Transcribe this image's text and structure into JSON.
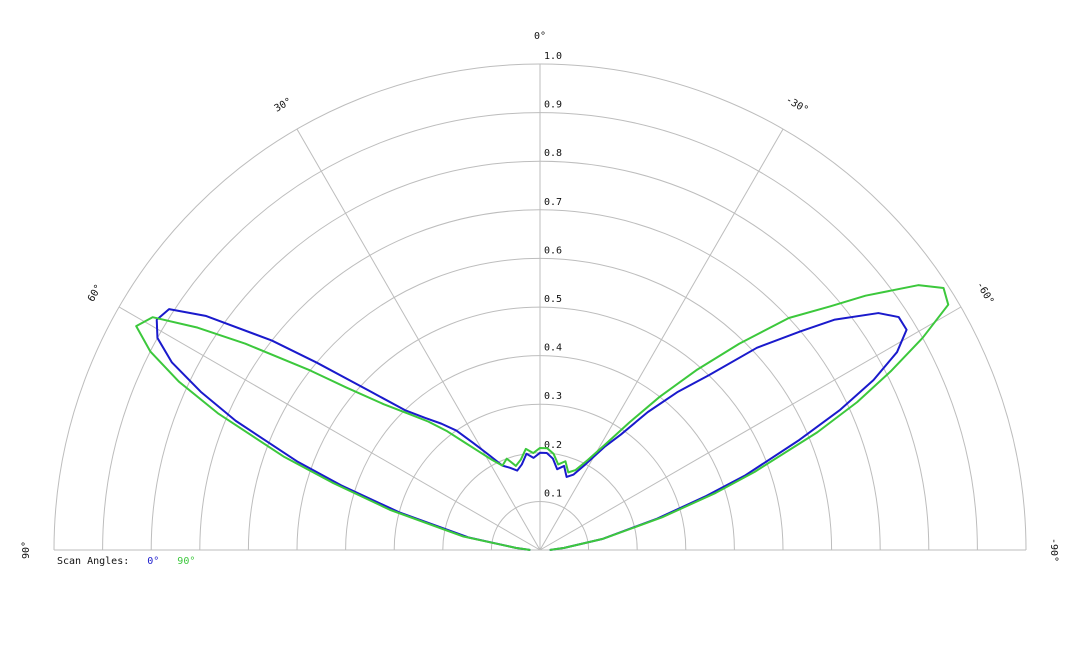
{
  "chart_data": {
    "type": "polar",
    "rlim": [
      0,
      1
    ],
    "rticks": [
      0.1,
      0.2,
      0.3,
      0.4,
      0.5,
      0.6,
      0.7,
      0.8,
      0.9,
      {
        "value": 1,
        "label": "1.0"
      }
    ],
    "thetalim": [
      -90,
      90
    ],
    "thetaticks": [
      {
        "value": 90,
        "label": "90°"
      },
      {
        "value": 60,
        "label": "60°"
      },
      {
        "value": 30,
        "label": "30°"
      },
      {
        "value": 0,
        "label": "0°"
      },
      {
        "value": -30,
        "label": "-30°"
      },
      {
        "value": -60,
        "label": "-60°"
      },
      {
        "value": -90,
        "label": "-90°"
      }
    ],
    "grid": true,
    "legend_title": "Scan Angles:",
    "legend_position": "bottom-left",
    "x": [
      -90,
      -85,
      -80,
      -75,
      -72,
      -70,
      -67,
      -65,
      -63,
      -61,
      -59,
      -57,
      -55,
      -52,
      -50,
      -47,
      -44,
      -41,
      -38,
      -35,
      -32,
      -28,
      -24,
      -20,
      -16,
      -12,
      -8,
      -4,
      0,
      4,
      8,
      12,
      16,
      20,
      24,
      28,
      32,
      35,
      38,
      41,
      44,
      47,
      50,
      52,
      55,
      57,
      59,
      61,
      63,
      65,
      67,
      70,
      72,
      75,
      80,
      85,
      90
    ],
    "series": [
      {
        "name": "0°",
        "color": "#1a1acc",
        "values": [
          0.02,
          0.05,
          0.13,
          0.25,
          0.36,
          0.45,
          0.58,
          0.68,
          0.77,
          0.84,
          0.88,
          0.88,
          0.85,
          0.77,
          0.7,
          0.61,
          0.5,
          0.43,
          0.36,
          0.29,
          0.25,
          0.2,
          0.17,
          0.16,
          0.18,
          0.17,
          0.19,
          0.2,
          0.2,
          0.19,
          0.2,
          0.18,
          0.17,
          0.18,
          0.19,
          0.22,
          0.26,
          0.3,
          0.33,
          0.36,
          0.4,
          0.48,
          0.6,
          0.7,
          0.84,
          0.91,
          0.92,
          0.9,
          0.85,
          0.77,
          0.68,
          0.53,
          0.43,
          0.3,
          0.15,
          0.05,
          0.02
        ]
      },
      {
        "name": "90°",
        "color": "#3cc83c",
        "values": [
          0.02,
          0.05,
          0.13,
          0.26,
          0.38,
          0.47,
          0.62,
          0.72,
          0.81,
          0.9,
          0.98,
          0.99,
          0.95,
          0.85,
          0.78,
          0.7,
          0.59,
          0.49,
          0.4,
          0.32,
          0.26,
          0.21,
          0.18,
          0.17,
          0.19,
          0.18,
          0.2,
          0.21,
          0.21,
          0.2,
          0.21,
          0.19,
          0.18,
          0.2,
          0.19,
          0.21,
          0.24,
          0.27,
          0.31,
          0.35,
          0.39,
          0.44,
          0.52,
          0.6,
          0.74,
          0.84,
          0.93,
          0.95,
          0.9,
          0.82,
          0.72,
          0.56,
          0.45,
          0.32,
          0.16,
          0.05,
          0.02
        ]
      }
    ]
  }
}
